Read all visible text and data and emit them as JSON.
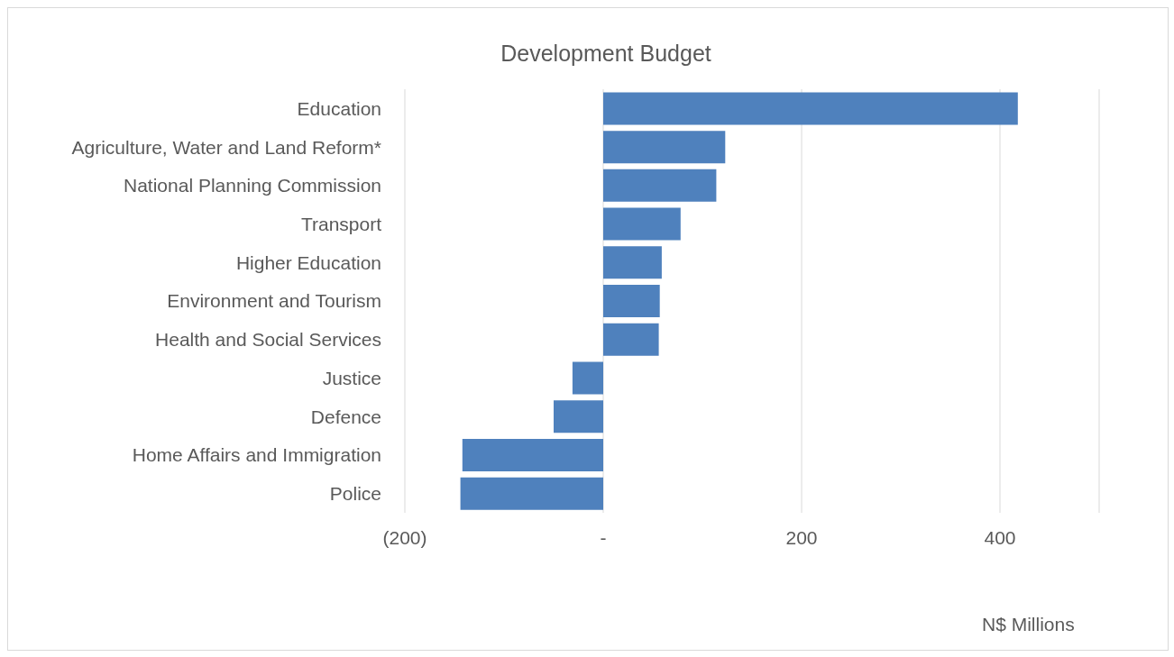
{
  "chart_data": {
    "type": "bar",
    "orientation": "horizontal",
    "title": "Development Budget",
    "xlabel": "N$ Millions",
    "categories": [
      "Education",
      "Agriculture, Water and Land Reform*",
      "National Planning Commission",
      "Transport",
      "Higher Education",
      "Environment and Tourism",
      "Health and Social Services",
      "Justice",
      "Defence",
      "Home Affairs and Immigration",
      "Police"
    ],
    "values": [
      418,
      123,
      114,
      78,
      59,
      57,
      56,
      -31,
      -50,
      -142,
      -144
    ],
    "color": "#4f81bd",
    "xlim": [
      -200,
      500
    ],
    "xticks": [
      {
        "value": -200,
        "label": "(200)"
      },
      {
        "value": 0,
        "label": "-"
      },
      200,
      400
    ],
    "grid": "x"
  }
}
